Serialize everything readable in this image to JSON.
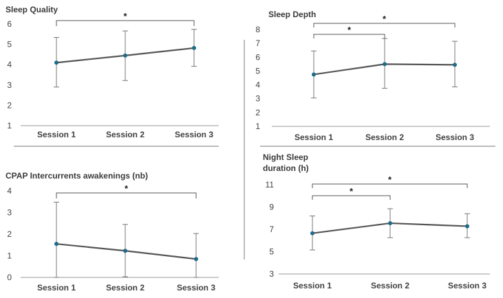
{
  "chart_data": [
    {
      "type": "line",
      "title": "Sleep Quality",
      "categories": [
        "Session 1",
        "Session 2",
        "Session 3"
      ],
      "values": [
        4.1,
        4.45,
        4.82
      ],
      "error_low": [
        2.9,
        3.22,
        3.92
      ],
      "error_high": [
        5.34,
        5.66,
        5.74
      ],
      "ylim": [
        1,
        6
      ],
      "yticks": [
        1,
        2,
        3,
        4,
        5,
        6
      ],
      "significance": [
        {
          "from": "Session 1",
          "to": "Session 3",
          "label": "*"
        }
      ]
    },
    {
      "type": "line",
      "title": "Sleep Depth",
      "categories": [
        "Session 1",
        "Session 2",
        "Session 3"
      ],
      "values": [
        4.75,
        5.5,
        5.45
      ],
      "error_low": [
        3.05,
        3.75,
        3.85
      ],
      "error_high": [
        6.45,
        7.35,
        7.15
      ],
      "ylim": [
        1,
        8
      ],
      "yticks": [
        1,
        2,
        3,
        4,
        5,
        6,
        7,
        8
      ],
      "significance": [
        {
          "from": "Session 1",
          "to": "Session 2",
          "label": "*"
        },
        {
          "from": "Session 1",
          "to": "Session 3",
          "label": "*"
        }
      ]
    },
    {
      "type": "line",
      "title": "CPAP Intercurrents awakenings (nb)",
      "categories": [
        "Session 1",
        "Session 2",
        "Session 3"
      ],
      "values": [
        1.55,
        1.23,
        0.85
      ],
      "error_low": [
        0,
        0.03,
        0
      ],
      "error_high": [
        3.48,
        2.45,
        2.03
      ],
      "ylim": [
        0,
        4
      ],
      "yticks": [
        0,
        1,
        2,
        3,
        4
      ],
      "significance": [
        {
          "from": "Session 1",
          "to": "Session 3",
          "label": "*"
        }
      ]
    },
    {
      "type": "line",
      "title": "Night Sleep duration (h)",
      "title_lines": [
        "Night Sleep",
        "duration (h)"
      ],
      "categories": [
        "Session 1",
        "Session 2",
        "Session 3"
      ],
      "values": [
        6.65,
        7.55,
        7.28
      ],
      "error_low": [
        5.15,
        6.25,
        6.25
      ],
      "error_high": [
        8.2,
        8.85,
        8.4
      ],
      "ylim": [
        3,
        11
      ],
      "yticks": [
        3,
        5,
        7,
        9,
        11
      ],
      "significance": [
        {
          "from": "Session 1",
          "to": "Session 2",
          "label": "*"
        },
        {
          "from": "Session 1",
          "to": "Session 3",
          "label": "*"
        }
      ]
    }
  ],
  "colors": {
    "line": "#555555",
    "marker": "#1f6b8a",
    "error": "#777777",
    "text": "#404040"
  }
}
